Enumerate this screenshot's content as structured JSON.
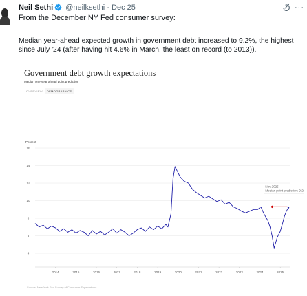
{
  "tweet": {
    "author_name": "Neil Sethi",
    "handle": "@neilksethi",
    "separator": "·",
    "date": "Dec 25",
    "icons": {
      "avatar": "avatar-photo",
      "verified": "verified-badge-icon",
      "grok": "grok-icon",
      "more": "more-icon"
    },
    "colors": {
      "verified": "#1d9bf0",
      "text": "#0f1419",
      "muted": "#536471"
    },
    "intro_text": "From the December NY Fed consumer survey:",
    "body_text": "Median year-ahead expected growth in government debt increased to 9.2%, the highest since July '24 (after having hit 4.6% in March, the least on record (to 2013))."
  },
  "card": {
    "title": "Government debt growth expectations",
    "subtitle": "Median one-year ahead point prediction",
    "tabs": [
      {
        "label": "OVERVIEW",
        "active": false
      },
      {
        "label": "DEMOGRAPHICS",
        "active": true
      }
    ],
    "source": "Source: New York Fed Survey of Consumer Expectations"
  },
  "chart_data": {
    "type": "line",
    "title": "Government debt growth expectations",
    "subtitle": "Median one-year ahead point prediction",
    "y_unit_label": "Percent",
    "ylim": [
      4,
      16
    ],
    "y_ticks": [
      4,
      6,
      8,
      10,
      12,
      14,
      16
    ],
    "xlim": [
      2013.5,
      2026
    ],
    "x_ticks": [
      "2014",
      "2015",
      "2016",
      "2017",
      "2018",
      "2019",
      "2020",
      "2021",
      "2022",
      "2023",
      "2024",
      "2025"
    ],
    "line_color": "#1f1fa8",
    "grid": true,
    "annotation": {
      "lines": [
        "Nov 2025",
        "Median point prediction: 9.2%"
      ],
      "arrow_color": "#cc0000"
    },
    "series": [
      {
        "values": [
          [
            2013.5,
            7.4
          ],
          [
            2013.7,
            7.0
          ],
          [
            2013.9,
            7.2
          ],
          [
            2014.1,
            6.8
          ],
          [
            2014.3,
            7.1
          ],
          [
            2014.5,
            6.9
          ],
          [
            2014.7,
            6.5
          ],
          [
            2014.9,
            6.8
          ],
          [
            2015.1,
            6.4
          ],
          [
            2015.3,
            6.7
          ],
          [
            2015.5,
            6.3
          ],
          [
            2015.7,
            6.6
          ],
          [
            2015.9,
            6.4
          ],
          [
            2016.1,
            6.0
          ],
          [
            2016.3,
            6.6
          ],
          [
            2016.5,
            6.2
          ],
          [
            2016.7,
            6.5
          ],
          [
            2016.9,
            6.1
          ],
          [
            2017.1,
            6.4
          ],
          [
            2017.3,
            6.8
          ],
          [
            2017.5,
            6.3
          ],
          [
            2017.7,
            6.7
          ],
          [
            2017.9,
            6.4
          ],
          [
            2018.1,
            6.0
          ],
          [
            2018.3,
            6.3
          ],
          [
            2018.5,
            6.7
          ],
          [
            2018.7,
            6.9
          ],
          [
            2018.9,
            6.5
          ],
          [
            2019.1,
            7.0
          ],
          [
            2019.3,
            6.7
          ],
          [
            2019.5,
            7.1
          ],
          [
            2019.7,
            6.8
          ],
          [
            2019.9,
            7.3
          ],
          [
            2020.0,
            7.0
          ],
          [
            2020.15,
            8.5
          ],
          [
            2020.25,
            12.5
          ],
          [
            2020.35,
            13.9
          ],
          [
            2020.45,
            13.4
          ],
          [
            2020.6,
            12.7
          ],
          [
            2020.8,
            12.2
          ],
          [
            2021.0,
            12.0
          ],
          [
            2021.2,
            11.3
          ],
          [
            2021.4,
            10.9
          ],
          [
            2021.6,
            10.6
          ],
          [
            2021.8,
            10.3
          ],
          [
            2022.0,
            10.5
          ],
          [
            2022.2,
            10.2
          ],
          [
            2022.4,
            9.9
          ],
          [
            2022.6,
            10.1
          ],
          [
            2022.8,
            9.6
          ],
          [
            2023.0,
            9.8
          ],
          [
            2023.2,
            9.3
          ],
          [
            2023.4,
            9.1
          ],
          [
            2023.6,
            8.8
          ],
          [
            2023.8,
            8.6
          ],
          [
            2024.0,
            8.8
          ],
          [
            2024.2,
            9.0
          ],
          [
            2024.4,
            9.0
          ],
          [
            2024.55,
            9.3
          ],
          [
            2024.7,
            8.5
          ],
          [
            2024.9,
            7.7
          ],
          [
            2025.0,
            7.0
          ],
          [
            2025.1,
            6.0
          ],
          [
            2025.2,
            4.6
          ],
          [
            2025.35,
            5.8
          ],
          [
            2025.5,
            6.5
          ],
          [
            2025.6,
            7.3
          ],
          [
            2025.7,
            8.2
          ],
          [
            2025.8,
            8.8
          ],
          [
            2025.9,
            9.2
          ]
        ]
      }
    ]
  }
}
